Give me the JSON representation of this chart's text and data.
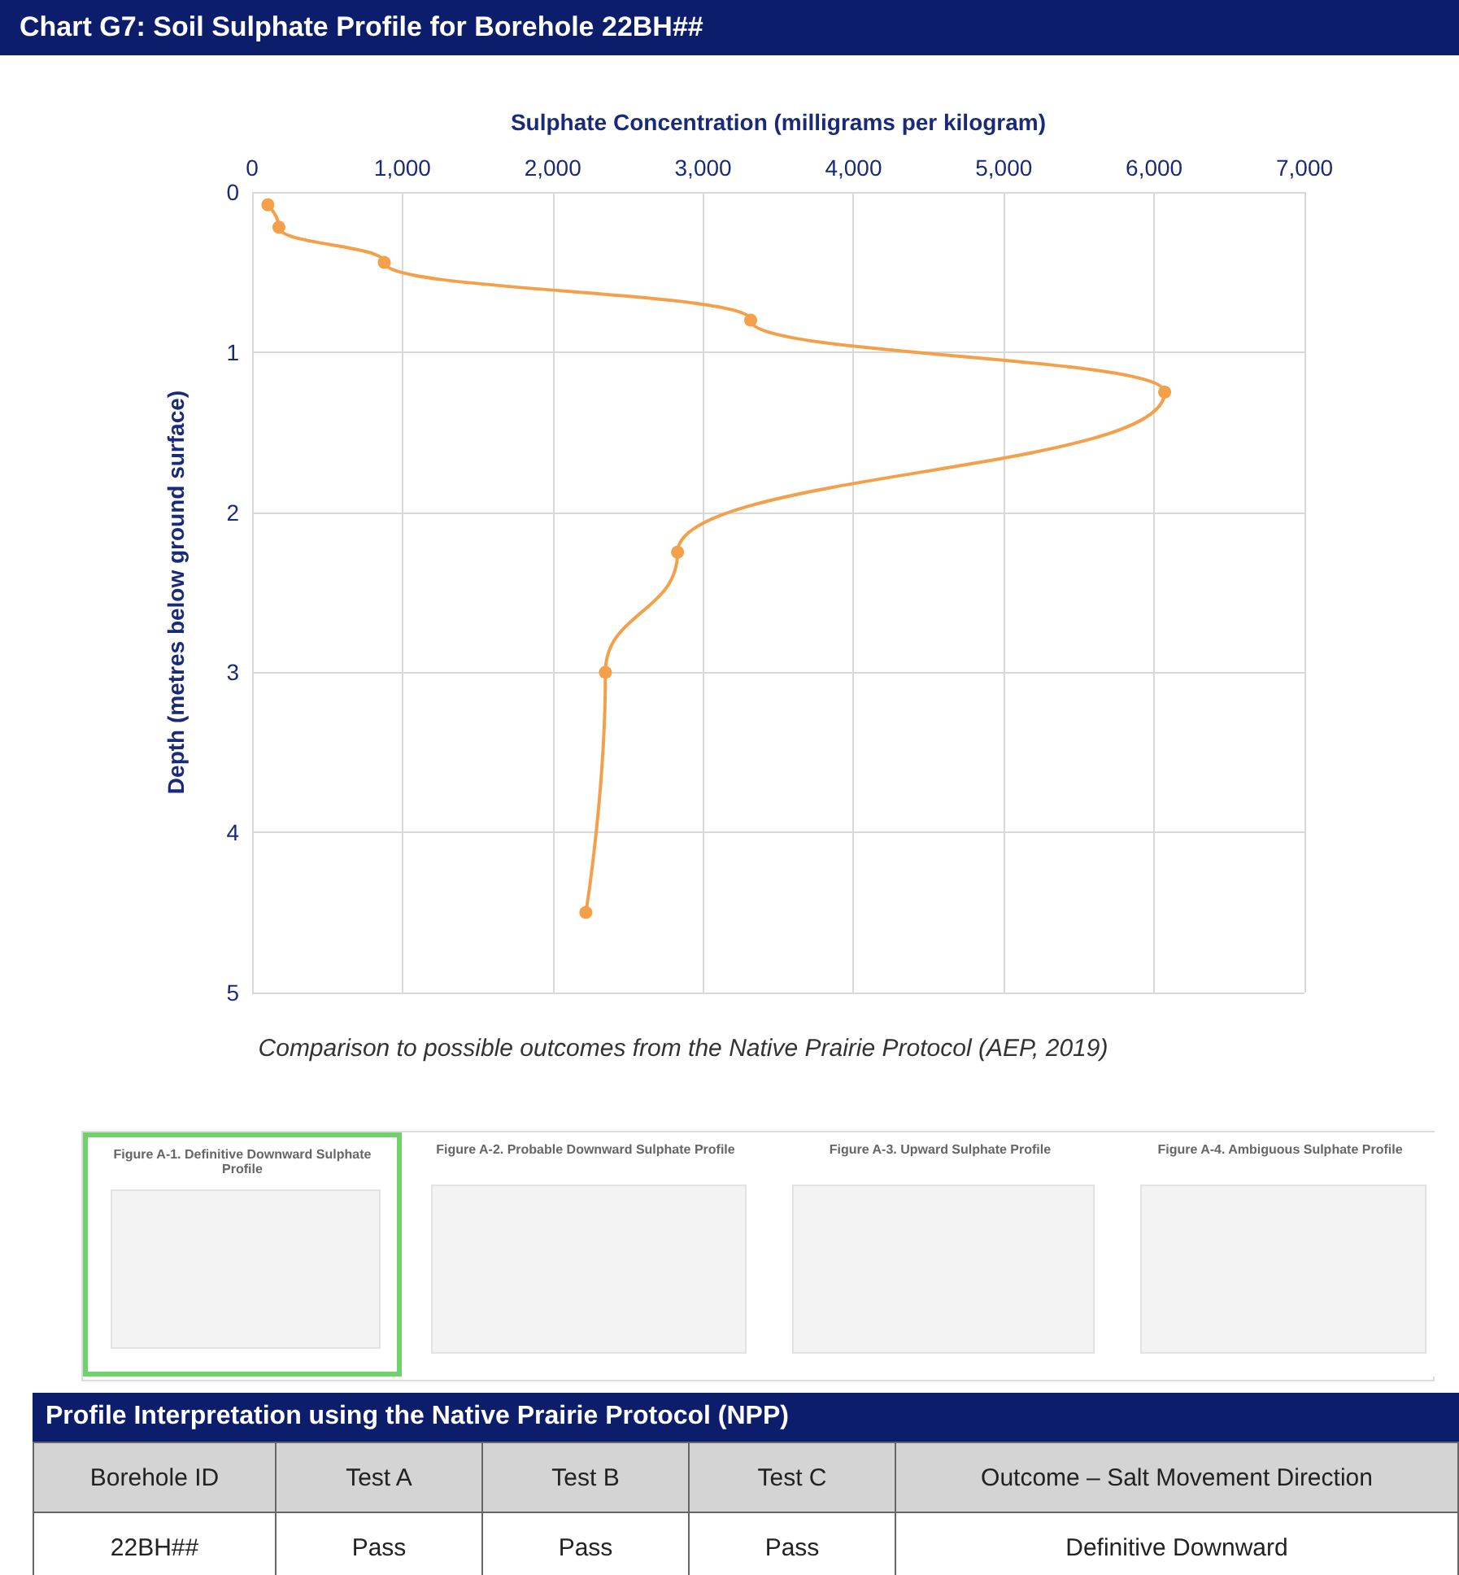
{
  "chart_data": {
    "type": "line",
    "title": "Chart G7: Soil Sulphate Profile for Borehole 22BH##",
    "xlabel": "Sulphate Concentration (milligrams per kilogram)",
    "ylabel": "Depth (metres below ground surface)",
    "x": [
      105,
      178,
      879,
      3316,
      6070,
      2830,
      2350,
      2220
    ],
    "series": [
      {
        "color": "#f4a04a",
        "values": [
          0.08,
          0.22,
          0.44,
          0.8,
          1.25,
          2.25,
          3.0,
          4.5
        ]
      }
    ],
    "xlim": [
      0,
      7000
    ],
    "xticks": [
      {
        "value": 0,
        "label": "0"
      },
      {
        "value": 1000,
        "label": "1,000"
      },
      {
        "value": 2000,
        "label": "2,000"
      },
      {
        "value": 3000,
        "label": "3,000"
      },
      {
        "value": 4000,
        "label": "4,000"
      },
      {
        "value": 5000,
        "label": "5,000"
      },
      {
        "value": 6000,
        "label": "6,000"
      },
      {
        "value": 7000,
        "label": "7,000"
      }
    ],
    "ylim": [
      5,
      0
    ],
    "yticks": [
      0,
      1,
      2,
      3,
      4,
      5
    ],
    "grid": true,
    "marker": "circle",
    "annotations": [
      "Comparison to possible outcomes from the Native Prairie Protocol (AEP, 2019)",
      "Figure A-1.  Definitive Downward Sulphate Profile",
      "Figure A-2.  Probable Downward Sulphate Profile",
      "Figure A-3.  Upward Sulphate Profile",
      "Figure A-4.  Ambiguous Sulphate Profile",
      "Profile Interpretation using the Native Prairie Protocol (NPP)",
      "Borehole ID",
      "Test A",
      "Test B",
      "Test C",
      "Outcome – Salt Movement Direction",
      "22BH##",
      "Pass",
      "Pass",
      "Pass",
      "Definitive Downward"
    ]
  }
}
